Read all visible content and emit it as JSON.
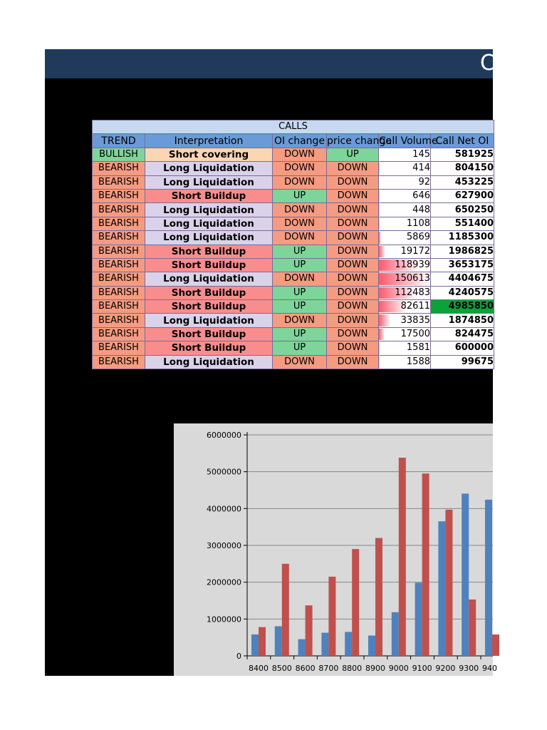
{
  "title": "C",
  "table": {
    "group_label": "CALLS",
    "headers": [
      "TREND",
      "Interpretation",
      "OI change",
      "price change",
      "Call Volume",
      "Call Net OI"
    ],
    "rows": [
      {
        "trend": "BULLISH",
        "interp": "Short covering",
        "oi": "DOWN",
        "price": "UP",
        "volume": "145",
        "net_oi": "581925"
      },
      {
        "trend": "BEARISH",
        "interp": "Long Liquidation",
        "oi": "DOWN",
        "price": "DOWN",
        "volume": "414",
        "net_oi": "804150"
      },
      {
        "trend": "BEARISH",
        "interp": "Long Liquidation",
        "oi": "DOWN",
        "price": "DOWN",
        "volume": "92",
        "net_oi": "453225"
      },
      {
        "trend": "BEARISH",
        "interp": "Short Buildup",
        "oi": "UP",
        "price": "DOWN",
        "volume": "646",
        "net_oi": "627900"
      },
      {
        "trend": "BEARISH",
        "interp": "Long Liquidation",
        "oi": "DOWN",
        "price": "DOWN",
        "volume": "448",
        "net_oi": "650250"
      },
      {
        "trend": "BEARISH",
        "interp": "Long Liquidation",
        "oi": "DOWN",
        "price": "DOWN",
        "volume": "1108",
        "net_oi": "551400"
      },
      {
        "trend": "BEARISH",
        "interp": "Long Liquidation",
        "oi": "DOWN",
        "price": "DOWN",
        "volume": "5869",
        "net_oi": "1185300"
      },
      {
        "trend": "BEARISH",
        "interp": "Short Buildup",
        "oi": "UP",
        "price": "DOWN",
        "volume": "19172",
        "net_oi": "1986825"
      },
      {
        "trend": "BEARISH",
        "interp": "Short Buildup",
        "oi": "UP",
        "price": "DOWN",
        "volume": "118939",
        "net_oi": "3653175"
      },
      {
        "trend": "BEARISH",
        "interp": "Long Liquidation",
        "oi": "DOWN",
        "price": "DOWN",
        "volume": "150613",
        "net_oi": "4404675"
      },
      {
        "trend": "BEARISH",
        "interp": "Short Buildup",
        "oi": "UP",
        "price": "DOWN",
        "volume": "112483",
        "net_oi": "4240575"
      },
      {
        "trend": "BEARISH",
        "interp": "Short Buildup",
        "oi": "UP",
        "price": "DOWN",
        "volume": "82611",
        "net_oi": "4985850"
      },
      {
        "trend": "BEARISH",
        "interp": "Long Liquidation",
        "oi": "DOWN",
        "price": "DOWN",
        "volume": "33835",
        "net_oi": "1874850"
      },
      {
        "trend": "BEARISH",
        "interp": "Short Buildup",
        "oi": "UP",
        "price": "DOWN",
        "volume": "17500",
        "net_oi": "824475"
      },
      {
        "trend": "BEARISH",
        "interp": "Short Buildup",
        "oi": "UP",
        "price": "DOWN",
        "volume": "1581",
        "net_oi": "600000"
      },
      {
        "trend": "BEARISH",
        "interp": "Long Liquidation",
        "oi": "DOWN",
        "price": "DOWN",
        "volume": "1588",
        "net_oi": "99675"
      }
    ],
    "colors": {
      "bullish": "#7dd59a",
      "bearish": "#f59b81",
      "highlight": "#0aa33a"
    }
  },
  "chart_data": {
    "type": "bar",
    "categories": [
      "8400",
      "8500",
      "8600",
      "8700",
      "8800",
      "8900",
      "9000",
      "9100",
      "9200",
      "9300",
      "940"
    ],
    "series": [
      {
        "color": "#4f81bd",
        "values": [
          581925,
          804150,
          453225,
          627900,
          650250,
          551400,
          1185300,
          1986825,
          3653175,
          4404675,
          4240575
        ]
      },
      {
        "color": "#c0504d",
        "values": [
          780000,
          2500000,
          1370000,
          2150000,
          2900000,
          3200000,
          5380000,
          4950000,
          3970000,
          1530000,
          580000
        ]
      }
    ],
    "yticks": [
      "0",
      "1000000",
      "2000000",
      "3000000",
      "4000000",
      "5000000",
      "6000000"
    ],
    "ylim": [
      0,
      6000000
    ],
    "grid": true
  }
}
